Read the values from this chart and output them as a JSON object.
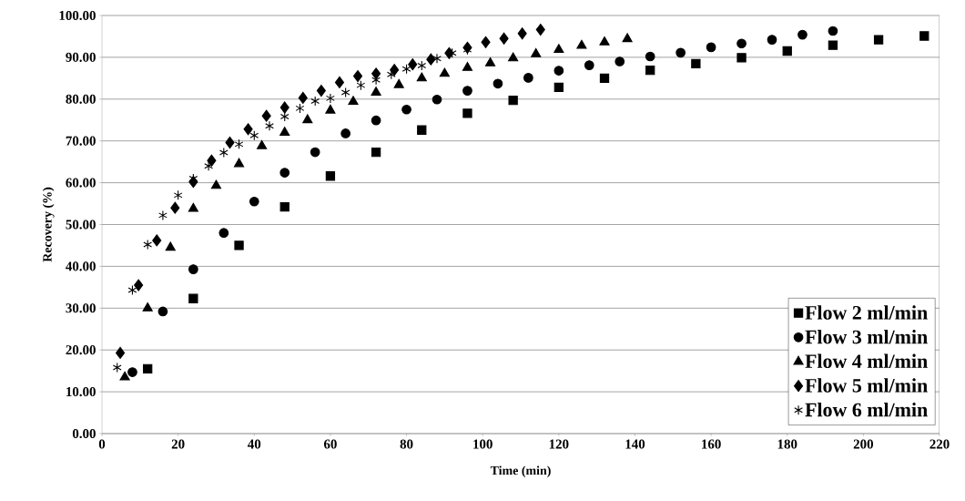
{
  "chart_data": {
    "type": "scatter",
    "xlabel": "Time (min)",
    "ylabel": "Recovery (%)",
    "xlim": [
      0,
      220
    ],
    "ylim": [
      0,
      100
    ],
    "xticks": [
      0,
      20,
      40,
      60,
      80,
      100,
      120,
      140,
      160,
      180,
      200,
      220
    ],
    "yticks": [
      {
        "value": 0,
        "label": "0.00"
      },
      {
        "value": 10,
        "label": "10.00"
      },
      {
        "value": 20,
        "label": "20.00"
      },
      {
        "value": 30,
        "label": "30.00"
      },
      {
        "value": 40,
        "label": "40.00"
      },
      {
        "value": 50,
        "label": "50.00"
      },
      {
        "value": 60,
        "label": "60.00"
      },
      {
        "value": 70,
        "label": "70.00"
      },
      {
        "value": 80,
        "label": "80.00"
      },
      {
        "value": 90,
        "label": "90.00"
      },
      {
        "value": 100,
        "label": "100.00"
      }
    ],
    "grid": "y",
    "legend": "bottom right",
    "series": [
      {
        "name": "Flow 2 ml/min",
        "color": "#000000",
        "marker": "square",
        "x": [
          12,
          24,
          36,
          48,
          60,
          72,
          84,
          96,
          108,
          120,
          132,
          144,
          156,
          168,
          180,
          192,
          204,
          216
        ],
        "values": [
          15.5,
          32.3,
          45,
          54.2,
          61.6,
          67.3,
          72.6,
          76.6,
          79.7,
          82.8,
          85,
          86.9,
          88.5,
          89.9,
          91.5,
          92.9,
          94.2,
          95.1
        ]
      },
      {
        "name": "Flow 3 ml/min",
        "color": "#000000",
        "marker": "circle",
        "x": [
          8,
          16,
          24,
          32,
          40,
          48,
          56,
          64,
          72,
          80,
          88,
          96,
          104,
          112,
          120,
          128,
          136,
          144,
          152,
          160,
          168,
          176,
          184,
          192
        ],
        "values": [
          14.7,
          29.2,
          39.3,
          48,
          55.5,
          62.4,
          67.3,
          71.8,
          74.9,
          77.5,
          79.9,
          82,
          83.7,
          85.1,
          86.8,
          88.1,
          89,
          90.2,
          91.1,
          92.4,
          93.3,
          94.2,
          95.4,
          96.3
        ]
      },
      {
        "name": "Flow 4 ml/min",
        "color": "#000000",
        "marker": "triangle",
        "x": [
          6,
          12,
          18,
          24,
          30,
          36,
          42,
          48,
          54,
          60,
          66,
          72,
          78,
          84,
          90,
          96,
          102,
          108,
          114,
          120,
          126,
          132,
          138
        ],
        "values": [
          13.5,
          30,
          44.5,
          53.8,
          59.3,
          64.5,
          68.8,
          72,
          75,
          77.3,
          79.4,
          81.6,
          83.4,
          85,
          86.1,
          87.5,
          88.6,
          89.8,
          90.8,
          91.8,
          92.8,
          93.6,
          94.4
        ]
      },
      {
        "name": "Flow 5 ml/min",
        "color": "#000000",
        "marker": "diamond",
        "x": [
          4.8,
          9.6,
          14.4,
          19.2,
          24,
          28.8,
          33.6,
          38.4,
          43.2,
          48,
          52.8,
          57.6,
          62.4,
          67.2,
          72,
          76.8,
          81.6,
          86.4,
          91.2,
          96,
          100.8,
          105.6,
          110.4,
          115.2
        ],
        "values": [
          19.3,
          35.5,
          46.2,
          54,
          60.2,
          65.3,
          69.6,
          72.8,
          76,
          78,
          80.3,
          82,
          84,
          85.5,
          86.1,
          87,
          88.3,
          89.5,
          91,
          92.3,
          93.6,
          94.5,
          95.7,
          96.6
        ]
      },
      {
        "name": "Flow 6 ml/min",
        "color": "#000000",
        "marker": "cross",
        "x": [
          4,
          8,
          12,
          16,
          20,
          24,
          28,
          32,
          36,
          40,
          44,
          48,
          52,
          56,
          60,
          64,
          68,
          72,
          76,
          80,
          84,
          88,
          92,
          96
        ],
        "values": [
          15.8,
          34.3,
          45.2,
          52.2,
          57,
          61,
          64,
          67.2,
          69.2,
          71.3,
          73.6,
          75.8,
          77.8,
          79.5,
          80.2,
          81.6,
          83.3,
          84.6,
          85.9,
          87.2,
          88,
          89.7,
          91,
          91.8
        ]
      }
    ]
  }
}
